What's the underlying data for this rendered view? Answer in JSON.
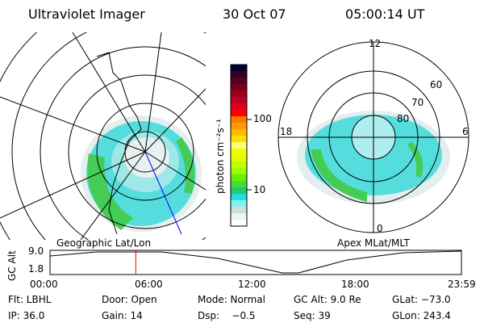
{
  "header": {
    "instrument": "Ultraviolet Imager",
    "date": "30 Oct 07",
    "time": "05:00:14 UT"
  },
  "left_map": {
    "label": "Geographic Lat/Lon"
  },
  "right_map": {
    "label": "Apex MLat/MLT",
    "mlt_labels": [
      "12",
      "18",
      "6",
      "0"
    ],
    "lat_labels": [
      "60",
      "70",
      "80"
    ]
  },
  "colorbar": {
    "unit": "photon cm⁻²s⁻¹",
    "ticks": [
      "100",
      "10"
    ],
    "colors": [
      "#000033",
      "#330022",
      "#550022",
      "#770022",
      "#990022",
      "#bb0022",
      "#dd0022",
      "#ff0000",
      "#ff7700",
      "#ff9900",
      "#ffbb00",
      "#ffdd00",
      "#ffff77",
      "#eeff00",
      "#ddff00",
      "#bbff00",
      "#99ff00",
      "#66ee00",
      "#44dd33",
      "#22cc66",
      "#22dddd",
      "#88eeee",
      "#ccdddd",
      "#eef4ee",
      "#ffffff"
    ]
  },
  "altitude_plot": {
    "ylabel": "GC Alt",
    "yticks": [
      "9.0",
      "1.8"
    ],
    "xticks": [
      "00:00",
      "06:00",
      "12:00",
      "18:00",
      "23:59"
    ],
    "current_time_color": "#ff0000",
    "current_time": "05:00"
  },
  "info": {
    "row1": [
      "Flt: LBHL",
      "Door: Open",
      "Mode: Normal",
      "GC Alt: 9.0 Re",
      "GLat: −73.0"
    ],
    "row2": [
      "IP: 36.0",
      "Gain: 14",
      "Dsp:    −0.5",
      "Seq: 39",
      "GLon: 243.4"
    ]
  }
}
